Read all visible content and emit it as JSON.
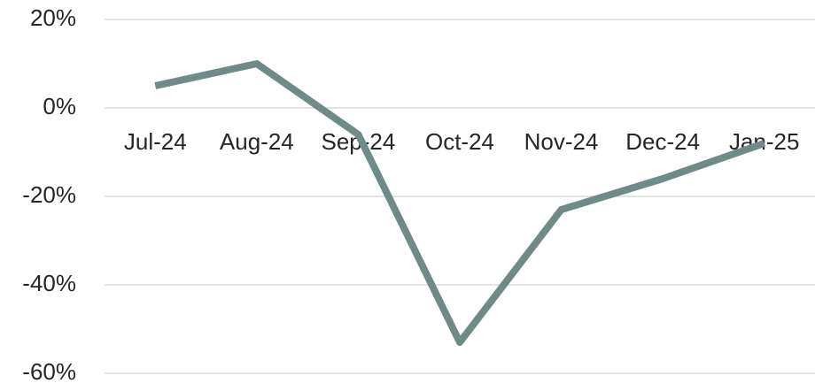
{
  "chart_data": {
    "type": "line",
    "categories": [
      "Jul-24",
      "Aug-24",
      "Sep-24",
      "Oct-24",
      "Nov-24",
      "Dec-24",
      "Jan-25"
    ],
    "values": [
      5,
      10,
      -6,
      -53,
      -23,
      -16,
      -8
    ],
    "color": "#6e8b87",
    "ylim": [
      -60,
      20
    ],
    "yticks": [
      {
        "value": -60,
        "label": "-60%"
      },
      {
        "value": -40,
        "label": "-40%"
      },
      {
        "value": -20,
        "label": "-20%"
      },
      {
        "value": 0,
        "label": "0%"
      },
      {
        "value": 20,
        "label": "20%"
      }
    ],
    "grid": true
  }
}
